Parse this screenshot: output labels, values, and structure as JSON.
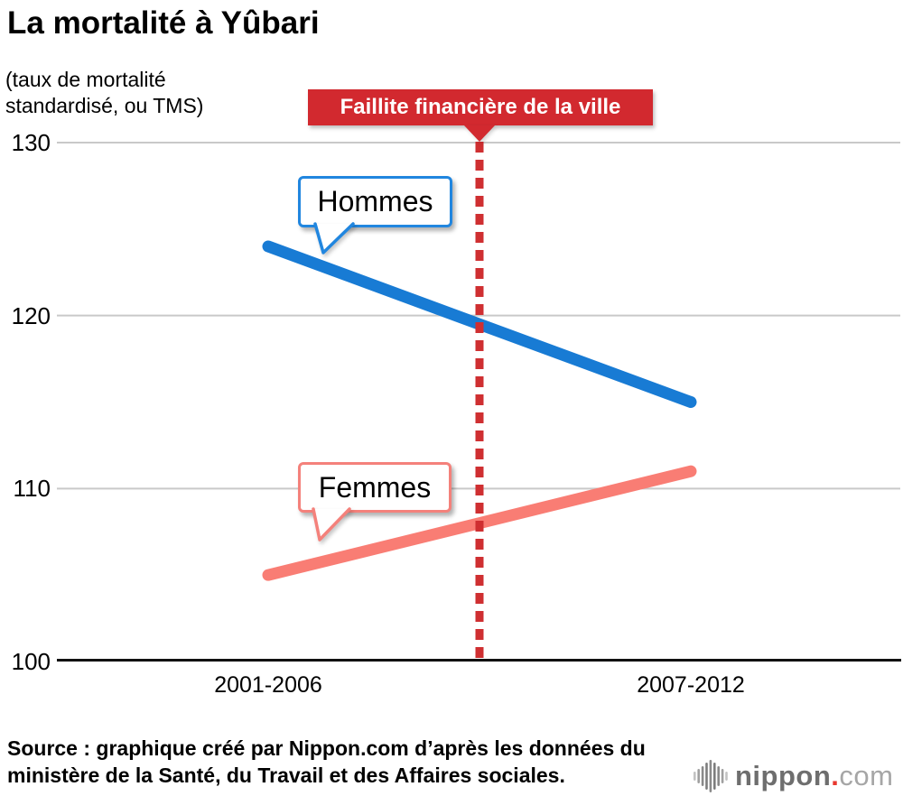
{
  "title": "La mortalité à Yûbari",
  "subtitle_line1": "(taux de mortalité",
  "subtitle_line2": "standardisé, ou TMS)",
  "banner": {
    "label": "Faillite financière de la ville",
    "color": "#d2292f"
  },
  "chart_data": {
    "type": "line",
    "categories": [
      "2001-2006",
      "2007-2012"
    ],
    "series": [
      {
        "name": "Hommes",
        "values": [
          124,
          115
        ],
        "color": "#187bd4",
        "callout_border": "#2186df"
      },
      {
        "name": "Femmes",
        "values": [
          105,
          111
        ],
        "color": "#f97d74",
        "callout_border": "#f4817b"
      }
    ],
    "title": "La mortalité à Yûbari",
    "ylabel": "(taux de mortalité standardisé, ou TMS)",
    "xlabel": "",
    "yticks": [
      100,
      110,
      120,
      130
    ],
    "ylim": [
      100,
      130
    ],
    "grid": true,
    "legend": "inline-callouts",
    "annotation": {
      "text": "Faillite financière de la ville",
      "style": "vertical-dashed-line",
      "x_position": "midpoint-between-categories",
      "color": "#cf2f31"
    },
    "grid_color": "#c9c9c9",
    "axis_color": "#111111"
  },
  "source_line1": "Source : graphique créé par Nippon.com d’après les données du",
  "source_line2": "ministère de la Santé, du Travail et des Affaires sociales.",
  "logo": {
    "icon": "soundwave-bars-icon",
    "nippon": "nippon",
    "dot": ".",
    "com": "com"
  }
}
